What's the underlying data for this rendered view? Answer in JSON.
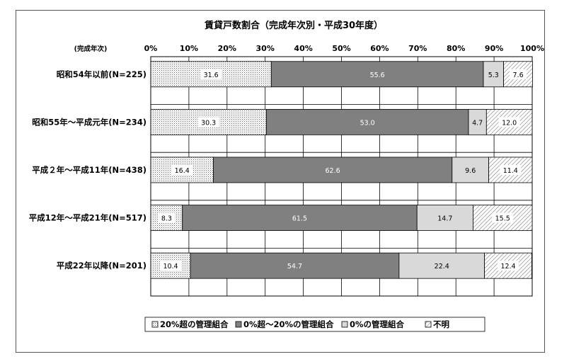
{
  "chart_data": {
    "type": "bar",
    "orientation": "horizontal",
    "stacked": "percent",
    "title": "賃貸戸数割合（完成年次別・平成30年度）",
    "category_axis_label": "(完成年次)",
    "xlim": [
      0,
      100
    ],
    "x_ticks": [
      "0%",
      "10%",
      "20%",
      "30%",
      "40%",
      "50%",
      "60%",
      "70%",
      "80%",
      "90%",
      "100%"
    ],
    "categories": [
      "昭和54年以前(N=225)",
      "昭和55年～平成元年(N=234)",
      "平成２年～平成11年(N=438)",
      "平成12年～平成21年(N=517)",
      "平成22年以降(N=201)"
    ],
    "series": [
      {
        "name": "20%超の管理組合",
        "color": "#ffffff",
        "pattern": "dots",
        "values": [
          31.6,
          30.3,
          16.4,
          8.3,
          10.4
        ],
        "labels": [
          "31.6",
          "30.3",
          "16.4",
          "8.3",
          "10.4"
        ]
      },
      {
        "name": "0%超～20%の管理組合",
        "color": "#808080",
        "pattern": "solid",
        "values": [
          55.6,
          53.0,
          62.6,
          61.5,
          54.7
        ],
        "labels": [
          "55.6",
          "53.0",
          "62.6",
          "61.5",
          "54.7"
        ]
      },
      {
        "name": "0%の管理組合",
        "color": "#d9d9d9",
        "pattern": "solid",
        "values": [
          5.3,
          4.7,
          9.6,
          14.7,
          22.4
        ],
        "labels": [
          "5.3",
          "4.7",
          "9.6",
          "14.7",
          "22.4"
        ]
      },
      {
        "name": "不明",
        "color": "#ffffff",
        "pattern": "hatch",
        "values": [
          7.6,
          12.0,
          11.4,
          15.5,
          12.4
        ],
        "labels": [
          "7.6",
          "12.0",
          "11.4",
          "15.5",
          "12.4"
        ]
      }
    ],
    "grid": true,
    "legend_position": "bottom"
  }
}
